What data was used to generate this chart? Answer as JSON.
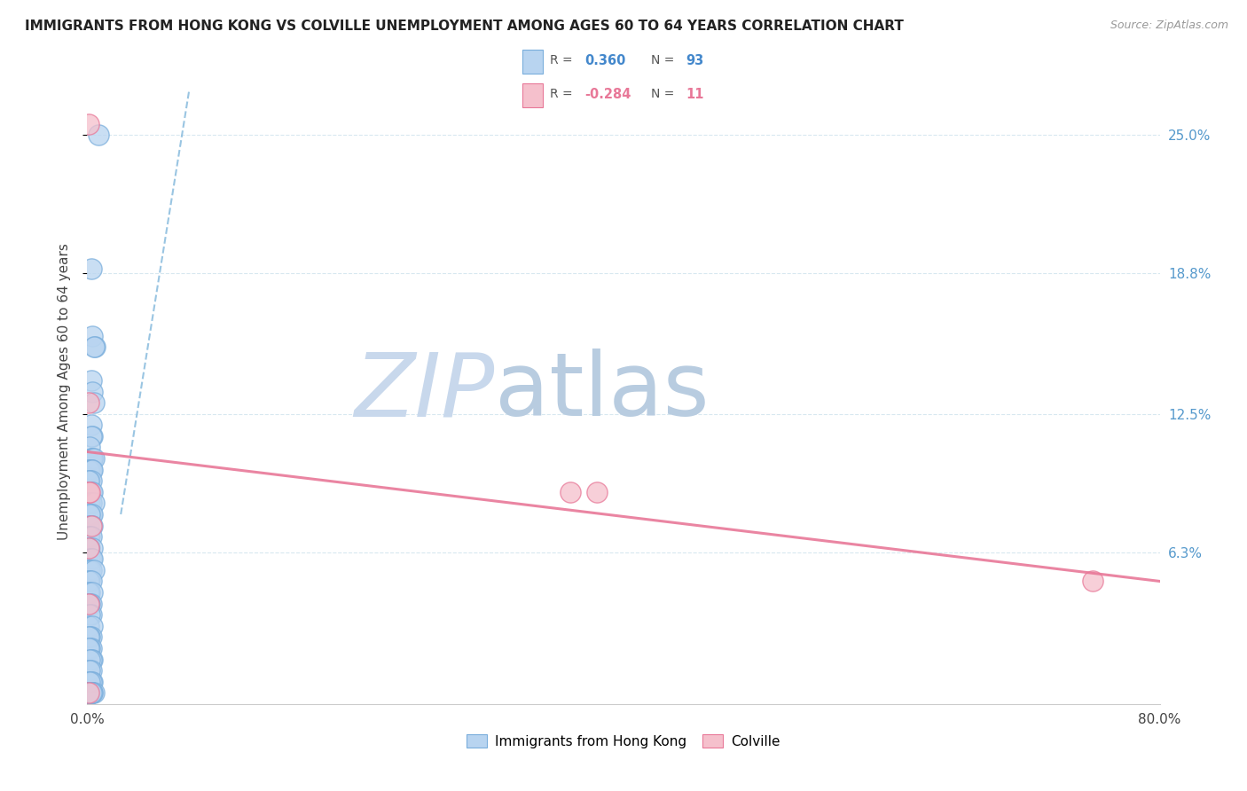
{
  "title": "IMMIGRANTS FROM HONG KONG VS COLVILLE UNEMPLOYMENT AMONG AGES 60 TO 64 YEARS CORRELATION CHART",
  "source": "Source: ZipAtlas.com",
  "ylabel": "Unemployment Among Ages 60 to 64 years",
  "legend_labels": [
    "Immigrants from Hong Kong",
    "Colville"
  ],
  "blue_color": "#b8d4f0",
  "blue_edge_color": "#7aaedc",
  "pink_color": "#f5c0cc",
  "pink_edge_color": "#e87898",
  "blue_line_color": "#88bbdd",
  "pink_line_color": "#e87898",
  "watermark_zip": "#c8d8ec",
  "watermark_atlas": "#b8cce0",
  "grid_color": "#d8e8f0",
  "blue_scatter_x": [
    0.008,
    0.003,
    0.004,
    0.006,
    0.005,
    0.003,
    0.004,
    0.005,
    0.003,
    0.004,
    0.003,
    0.002,
    0.004,
    0.003,
    0.004,
    0.005,
    0.003,
    0.002,
    0.001,
    0.003,
    0.004,
    0.002,
    0.003,
    0.001,
    0.002,
    0.003,
    0.004,
    0.002,
    0.001,
    0.003,
    0.005,
    0.002,
    0.003,
    0.004,
    0.002,
    0.001,
    0.003,
    0.004,
    0.002,
    0.001,
    0.003,
    0.002,
    0.004,
    0.001,
    0.002,
    0.003,
    0.004,
    0.001,
    0.002,
    0.003,
    0.005,
    0.002,
    0.001,
    0.003,
    0.002,
    0.001,
    0.004,
    0.003,
    0.002,
    0.001,
    0.003,
    0.002,
    0.001,
    0.004,
    0.003,
    0.002,
    0.001,
    0.003,
    0.002,
    0.001,
    0.004,
    0.003,
    0.002,
    0.001,
    0.003,
    0.002,
    0.001,
    0.004,
    0.003,
    0.002,
    0.001,
    0.003,
    0.002,
    0.004,
    0.003,
    0.001,
    0.002,
    0.005,
    0.003,
    0.002,
    0.001,
    0.004,
    0.003
  ],
  "blue_scatter_y": [
    0.25,
    0.19,
    0.16,
    0.155,
    0.155,
    0.14,
    0.135,
    0.13,
    0.12,
    0.115,
    0.115,
    0.11,
    0.105,
    0.105,
    0.105,
    0.105,
    0.1,
    0.1,
    0.1,
    0.1,
    0.1,
    0.095,
    0.095,
    0.095,
    0.09,
    0.09,
    0.09,
    0.085,
    0.085,
    0.085,
    0.085,
    0.08,
    0.08,
    0.08,
    0.08,
    0.075,
    0.075,
    0.075,
    0.07,
    0.07,
    0.07,
    0.065,
    0.065,
    0.065,
    0.06,
    0.06,
    0.06,
    0.055,
    0.055,
    0.055,
    0.055,
    0.05,
    0.05,
    0.05,
    0.045,
    0.045,
    0.045,
    0.04,
    0.04,
    0.04,
    0.035,
    0.035,
    0.03,
    0.03,
    0.025,
    0.025,
    0.025,
    0.02,
    0.02,
    0.02,
    0.015,
    0.015,
    0.015,
    0.01,
    0.01,
    0.01,
    0.005,
    0.005,
    0.005,
    0.005,
    0.0,
    0.0,
    0.0,
    0.0,
    0.0,
    0.0,
    0.0,
    0.0,
    0.0,
    0.0,
    0.0,
    0.0,
    0.0
  ],
  "pink_scatter_x": [
    0.001,
    0.001,
    0.001,
    0.002,
    0.003,
    0.36,
    0.38,
    0.001,
    0.001,
    0.75,
    0.001
  ],
  "pink_scatter_y": [
    0.255,
    0.13,
    0.09,
    0.09,
    0.075,
    0.09,
    0.09,
    0.065,
    0.04,
    0.05,
    0.0
  ],
  "blue_trend_x": [
    0.025,
    0.076
  ],
  "blue_trend_y": [
    0.08,
    0.27
  ],
  "pink_trend_x": [
    0.0,
    0.8
  ],
  "pink_trend_y": [
    0.108,
    0.05
  ],
  "xmin": 0.0,
  "xmax": 0.8,
  "ymin": -0.005,
  "ymax": 0.275,
  "ytick_positions": [
    0.063,
    0.125,
    0.188,
    0.25
  ],
  "ytick_labels": [
    "6.3%",
    "12.5%",
    "18.8%",
    "25.0%"
  ],
  "xtick_positions": [
    0.0,
    0.1,
    0.2,
    0.3,
    0.4,
    0.5,
    0.6,
    0.7,
    0.8
  ],
  "xtick_labels_show": [
    "0.0%",
    "",
    "",
    "",
    "",
    "",
    "",
    "",
    "80.0%"
  ]
}
